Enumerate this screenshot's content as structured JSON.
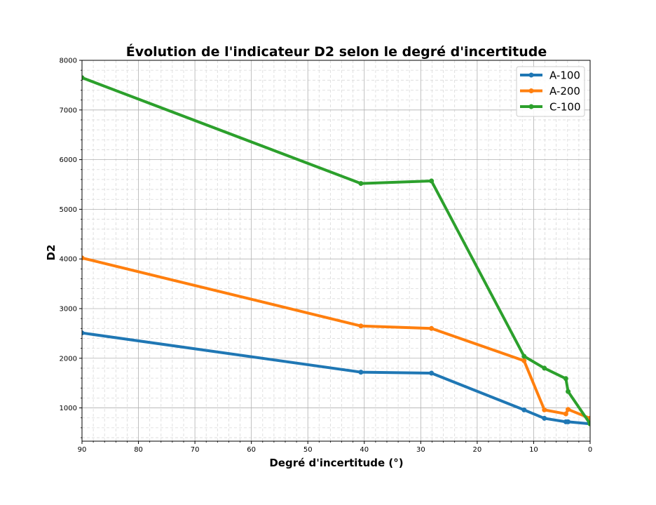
{
  "chart_data": {
    "type": "line",
    "title": "Évolution de l'indicateur D2 selon le degré d'incertitude",
    "xlabel": "Degré d'incertitude (°)",
    "ylabel": "D2",
    "xlim": [
      90,
      0
    ],
    "ylim": [
      330,
      8000
    ],
    "x_inverted": true,
    "grid": true,
    "minor_grid": true,
    "legend_position": "top-right",
    "x_ticks": [
      90,
      80,
      70,
      60,
      50,
      40,
      30,
      20,
      10,
      0
    ],
    "y_ticks": [
      1000,
      2000,
      3000,
      4000,
      5000,
      6000,
      7000,
      8000
    ],
    "series": [
      {
        "name": "A-100",
        "color": "#1f77b4",
        "x": [
          90,
          40.6,
          28.1,
          11.7,
          8.1,
          4.3,
          3.9,
          0
        ],
        "y": [
          2510,
          1720,
          1700,
          960,
          790,
          720,
          720,
          680
        ]
      },
      {
        "name": "A-200",
        "color": "#ff7f0e",
        "x": [
          90,
          40.6,
          28.1,
          11.7,
          8.1,
          4.3,
          3.9,
          0
        ],
        "y": [
          4020,
          2650,
          2600,
          1950,
          960,
          880,
          970,
          790
        ]
      },
      {
        "name": "C-100",
        "color": "#2ca02c",
        "x": [
          90,
          40.6,
          28.1,
          11.7,
          8.1,
          4.3,
          3.9,
          0
        ],
        "y": [
          7650,
          5520,
          5570,
          2040,
          1800,
          1590,
          1330,
          680
        ]
      }
    ]
  }
}
